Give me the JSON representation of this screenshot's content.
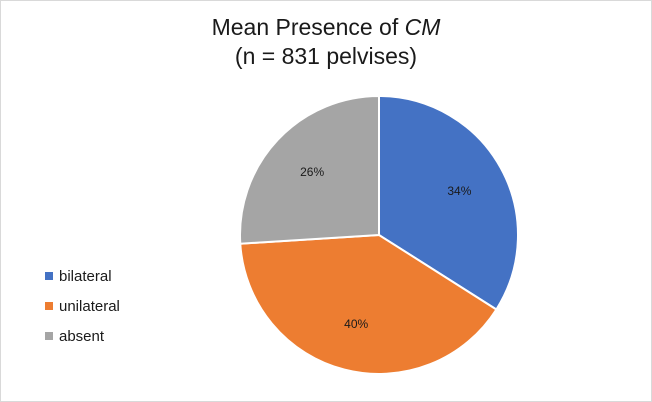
{
  "title": {
    "prefix": "Mean Presence of ",
    "italic": "CM",
    "line2": "(n = 831 pelvises)"
  },
  "chart_data": {
    "type": "pie",
    "title": "Mean Presence of CM (n = 831 pelvises)",
    "legend_position": "left",
    "slices": [
      {
        "name": "bilateral",
        "value": 34,
        "label": "34%",
        "color": "#4472c4"
      },
      {
        "name": "unilateral",
        "value": 40,
        "label": "40%",
        "color": "#ed7d31"
      },
      {
        "name": "absent",
        "value": 26,
        "label": "26%",
        "color": "#a5a5a5"
      }
    ]
  }
}
